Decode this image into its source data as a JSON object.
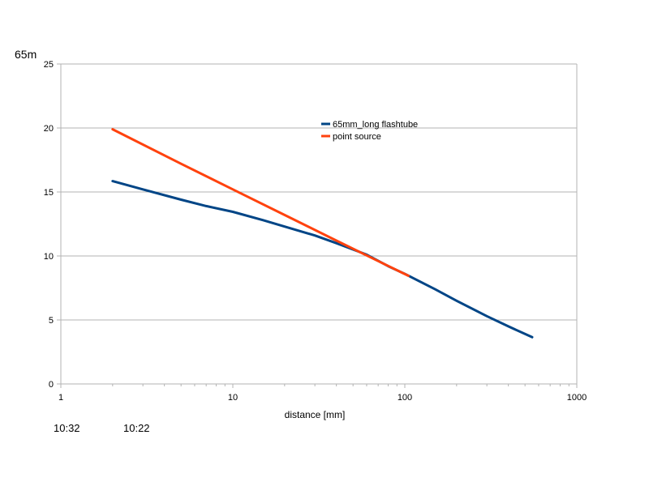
{
  "fragments": {
    "top_left": "65m",
    "bottom_left": "10:32",
    "bottom_mid": "10:22"
  },
  "chart_data": {
    "type": "line",
    "xlabel": "distance [mm]",
    "ylabel": "",
    "xscale": "log",
    "xlim": [
      1,
      1000
    ],
    "ylim": [
      0,
      25
    ],
    "xticks": [
      1,
      10,
      100,
      1000
    ],
    "yticks": [
      0,
      5,
      10,
      15,
      20,
      25
    ],
    "grid": "horizontal",
    "legend_position": "top-center",
    "series": [
      {
        "name": "65mm_long flashtube",
        "color": "#004586",
        "points": [
          [
            2.0,
            15.85
          ],
          [
            3.0,
            15.2
          ],
          [
            5.0,
            14.4
          ],
          [
            7.0,
            13.9
          ],
          [
            10.0,
            13.45
          ],
          [
            15.0,
            12.8
          ],
          [
            20.0,
            12.3
          ],
          [
            30.0,
            11.6
          ],
          [
            40.0,
            11.0
          ],
          [
            60.0,
            10.1
          ],
          [
            80.0,
            9.2
          ],
          [
            100.0,
            8.6
          ],
          [
            150.0,
            7.4
          ],
          [
            200.0,
            6.5
          ],
          [
            300.0,
            5.3
          ],
          [
            400.0,
            4.5
          ],
          [
            550.0,
            3.65
          ]
        ]
      },
      {
        "name": "point source",
        "color": "#ff420e",
        "points": [
          [
            2.0,
            19.9
          ],
          [
            5.0,
            17.2
          ],
          [
            10.0,
            15.2
          ],
          [
            20.0,
            13.2
          ],
          [
            40.0,
            11.2
          ],
          [
            70.0,
            9.6
          ],
          [
            105.0,
            8.45
          ]
        ]
      }
    ]
  }
}
